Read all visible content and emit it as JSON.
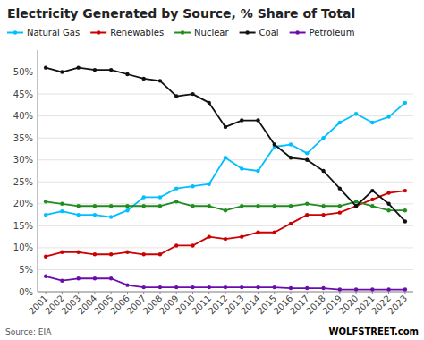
{
  "chart_data": {
    "type": "line",
    "title": "Electricity Generated by Source, % Share of Total",
    "annotations": [
      "Source: EIA",
      "WOLFSTREET.com"
    ],
    "x": [
      2001,
      2002,
      2003,
      2004,
      2005,
      2006,
      2007,
      2008,
      2009,
      2010,
      2011,
      2012,
      2013,
      2014,
      2015,
      2016,
      2017,
      2018,
      2019,
      2020,
      2021,
      2022,
      2023
    ],
    "series": [
      {
        "name": "Natural Gas",
        "color": "#00bfff",
        "marker": "circle",
        "line_style": "solid",
        "values": [
          17.5,
          18.3,
          17.5,
          17.5,
          17.0,
          18.5,
          21.5,
          21.5,
          23.5,
          24.0,
          24.5,
          30.5,
          28.0,
          27.5,
          33.0,
          33.5,
          31.5,
          35.0,
          38.5,
          40.5,
          38.5,
          39.8,
          43.0
        ]
      },
      {
        "name": "Renewables",
        "color": "#cc0000",
        "marker": "circle",
        "line_style": "solid",
        "values": [
          8.0,
          9.0,
          9.0,
          8.5,
          8.5,
          9.0,
          8.5,
          8.5,
          10.5,
          10.5,
          12.5,
          12.0,
          12.5,
          13.5,
          13.5,
          15.5,
          17.5,
          17.5,
          18.0,
          19.5,
          21.0,
          22.5,
          23.0
        ]
      },
      {
        "name": "Nuclear",
        "color": "#228B22",
        "marker": "circle",
        "line_style": "solid",
        "values": [
          20.5,
          20.0,
          19.5,
          19.5,
          19.5,
          19.5,
          19.5,
          19.5,
          20.5,
          19.5,
          19.5,
          18.5,
          19.5,
          19.5,
          19.5,
          19.5,
          20.0,
          19.5,
          19.5,
          20.5,
          19.5,
          18.5,
          18.5
        ]
      },
      {
        "name": "Coal",
        "color": "#111111",
        "marker": "circle",
        "line_style": "solid",
        "values": [
          51.0,
          50.0,
          51.0,
          50.5,
          50.5,
          49.5,
          48.5,
          48.0,
          44.5,
          45.0,
          43.0,
          37.5,
          39.0,
          39.0,
          33.5,
          30.5,
          30.0,
          27.5,
          23.5,
          19.5,
          23.0,
          20.0,
          16.0
        ]
      },
      {
        "name": "Petroleum",
        "color": "#6a0dad",
        "marker": "circle",
        "line_style": "solid",
        "values": [
          3.5,
          2.5,
          3.0,
          3.0,
          3.0,
          1.5,
          1.0,
          1.0,
          1.0,
          1.0,
          1.0,
          1.0,
          1.0,
          1.0,
          1.0,
          0.8,
          0.8,
          0.8,
          0.5,
          0.5,
          0.5,
          0.5,
          0.5
        ]
      }
    ],
    "xlim": [
      2000.5,
      2023.5
    ],
    "xticks": [
      2001,
      2002,
      2003,
      2004,
      2005,
      2006,
      2007,
      2008,
      2009,
      2010,
      2011,
      2012,
      2013,
      2014,
      2015,
      2016,
      2017,
      2018,
      2019,
      2020,
      2021,
      2022,
      2023
    ],
    "ylim": [
      0,
      55
    ],
    "yticks": [
      {
        "value": 0,
        "label": "0%"
      },
      {
        "value": 5,
        "label": "5%"
      },
      {
        "value": 10,
        "label": "10%"
      },
      {
        "value": 15,
        "label": "15%"
      },
      {
        "value": 20,
        "label": "20%"
      },
      {
        "value": 25,
        "label": "25%"
      },
      {
        "value": 30,
        "label": "30%"
      },
      {
        "value": 35,
        "label": "35%"
      },
      {
        "value": 40,
        "label": "40%"
      },
      {
        "value": 45,
        "label": "45%"
      },
      {
        "value": 50,
        "label": "50%"
      }
    ],
    "grid": true,
    "legend": "upper left"
  }
}
